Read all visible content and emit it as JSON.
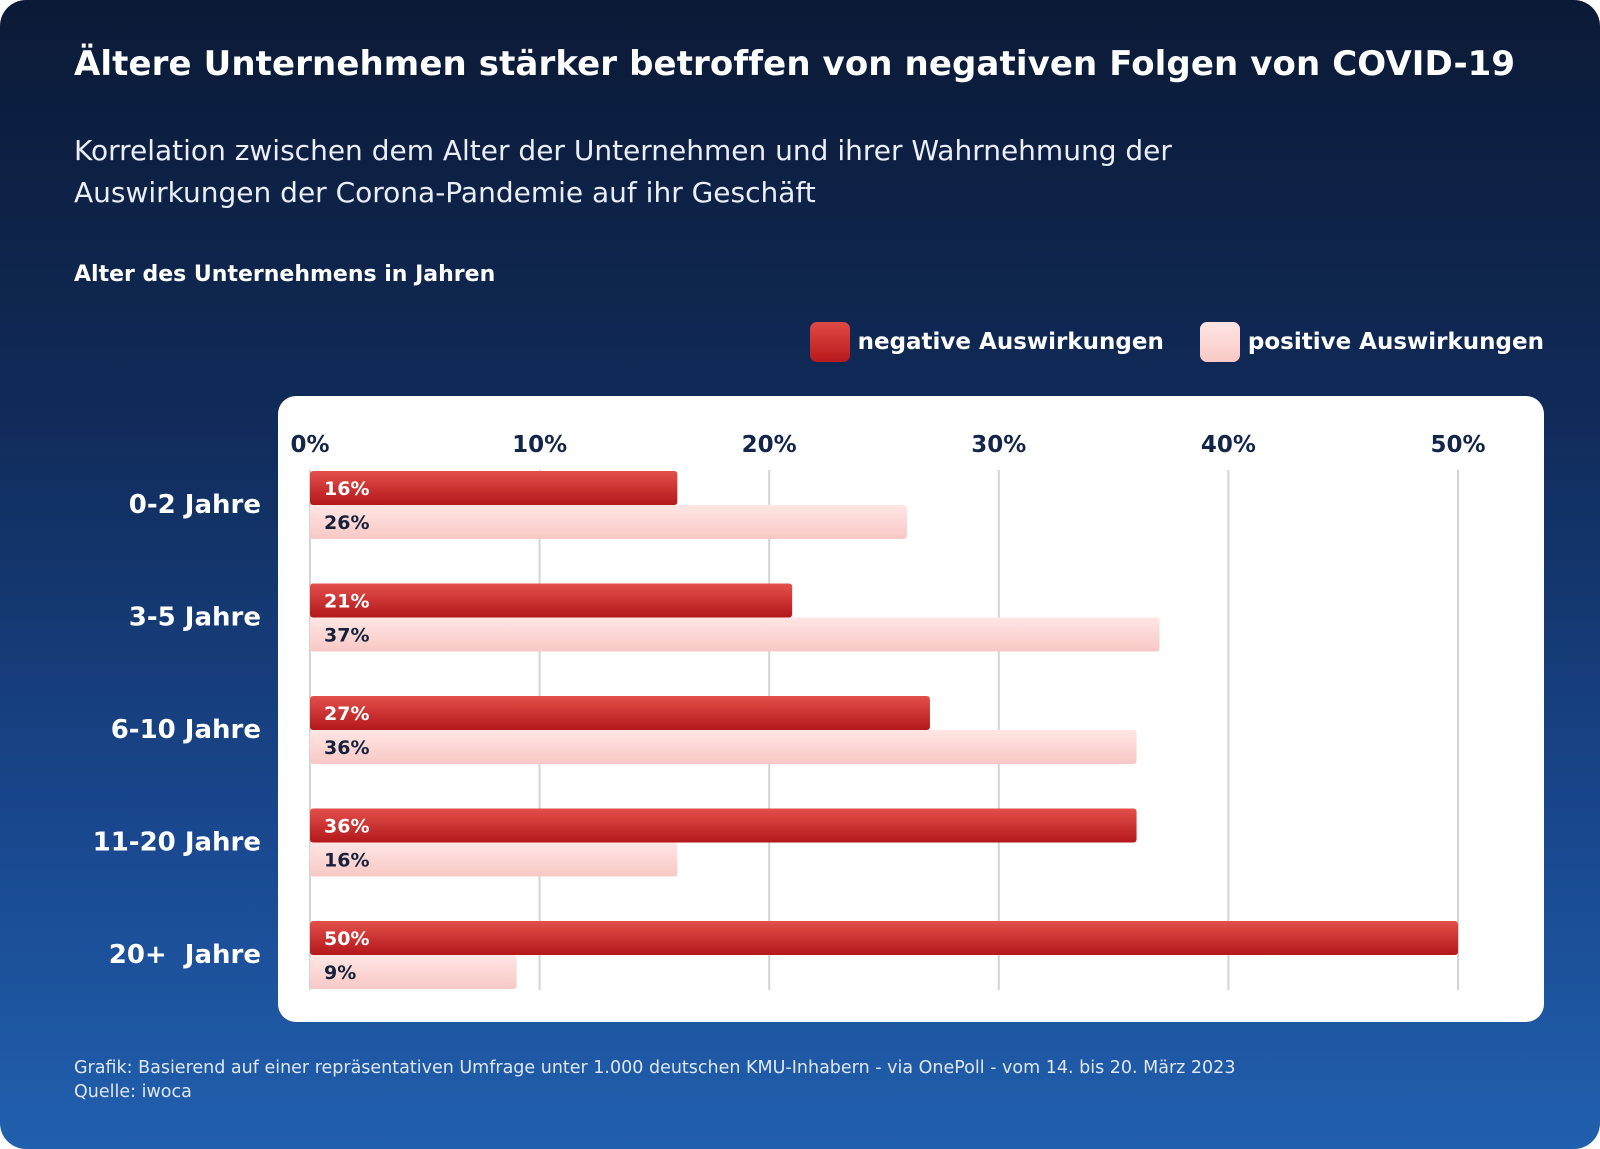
{
  "header": {
    "title": "Ältere Unternehmen stärker betroffen von negativen Folgen von COVID-19",
    "subtitle": "Korrelation zwischen dem Alter der Unternehmen und ihrer Wahrnehmung der Auswirkungen der Corona-Pandemie auf ihr Geschäft",
    "axis_caption": "Alter des Unternehmens in Jahren"
  },
  "legend": {
    "negative": "negative Auswirkungen",
    "positive": "positive Auswirkungen"
  },
  "colors": {
    "negative": "#c8262a",
    "positive": "#fcd3d0",
    "grid": "#d4d4d4",
    "tick_text": "#14254a"
  },
  "chart_data": {
    "type": "bar",
    "orientation": "horizontal",
    "title": "Ältere Unternehmen stärker betroffen von negativen Folgen von COVID-19",
    "ylabel": "Alter des Unternehmens in Jahren",
    "xlabel": "",
    "categories": [
      "0-2 Jahre",
      "3-5 Jahre",
      "6-10 Jahre",
      "11-20 Jahre",
      "20+  Jahre"
    ],
    "series": [
      {
        "name": "negative Auswirkungen",
        "values": [
          16,
          21,
          27,
          36,
          50
        ],
        "labels": [
          "16%",
          "21%",
          "27%",
          "36%",
          "50%"
        ]
      },
      {
        "name": "positive Auswirkungen",
        "values": [
          26,
          37,
          36,
          16,
          9
        ],
        "labels": [
          "26%",
          "37%",
          "36%",
          "16%",
          "9%"
        ]
      }
    ],
    "xlim": [
      0,
      50
    ],
    "ticks": [
      0,
      10,
      20,
      30,
      40,
      50
    ],
    "tick_labels": [
      "0%",
      "10%",
      "20%",
      "30%",
      "40%",
      "50%"
    ],
    "grid": true,
    "legend_position": "top-right"
  },
  "footer": {
    "note": "Grafik: Basierend auf einer repräsentativen Umfrage unter 1.000 deutschen KMU-Inhabern - via OnePoll - vom 14. bis 20. März 2023",
    "source": "Quelle: iwoca"
  }
}
